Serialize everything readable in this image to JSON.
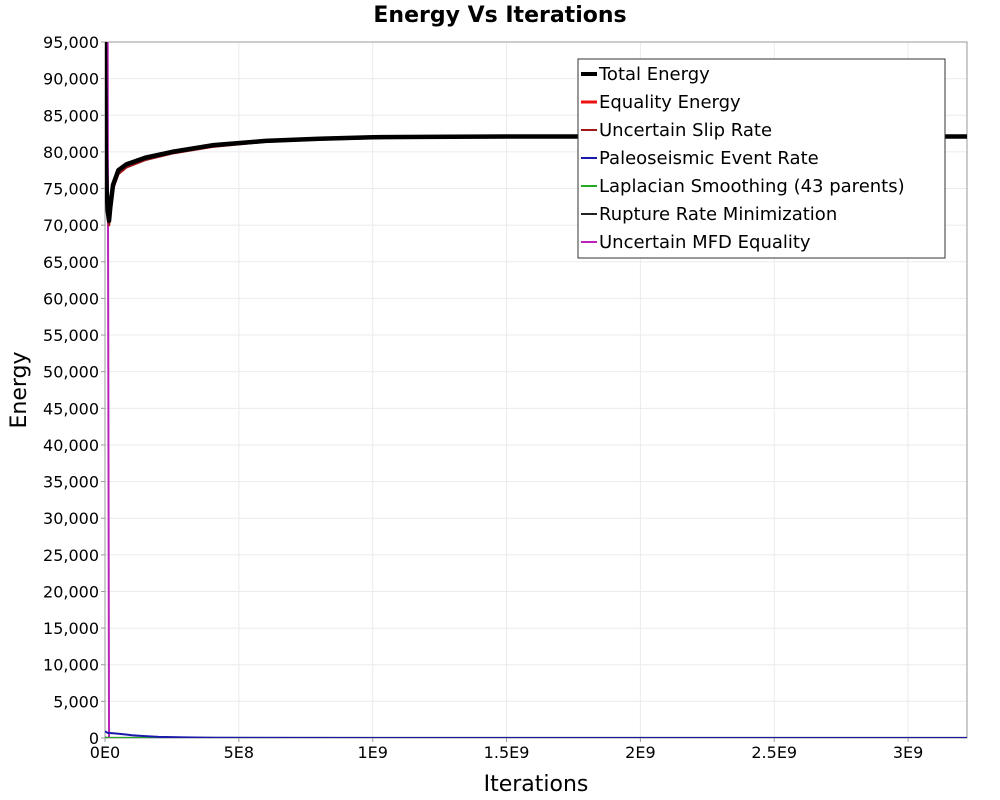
{
  "chart_data": {
    "type": "line",
    "title": "Energy Vs Iterations",
    "xlabel": "Iterations",
    "ylabel": "Energy",
    "xlim": [
      0,
      3220000000
    ],
    "ylim": [
      0,
      95000
    ],
    "x_ticks": [
      0,
      500000000,
      1000000000,
      1500000000,
      2000000000,
      2500000000,
      3000000000
    ],
    "x_tick_labels": [
      "0E0",
      "5E8",
      "1E9",
      "1.5E9",
      "2E9",
      "2.5E9",
      "3E9"
    ],
    "y_ticks": [
      0,
      5000,
      10000,
      15000,
      20000,
      25000,
      30000,
      35000,
      40000,
      45000,
      50000,
      55000,
      60000,
      65000,
      70000,
      75000,
      80000,
      85000,
      90000,
      95000
    ],
    "y_tick_labels": [
      "0",
      "5,000",
      "10,000",
      "15,000",
      "20,000",
      "25,000",
      "30,000",
      "35,000",
      "40,000",
      "45,000",
      "50,000",
      "55,000",
      "60,000",
      "65,000",
      "70,000",
      "75,000",
      "80,000",
      "85,000",
      "90,000",
      "95,000"
    ],
    "grid": true,
    "legend_position": "top-right",
    "series": [
      {
        "name": "Total Energy",
        "color": "#000000",
        "x": [
          0,
          3000000,
          6000000,
          10000000,
          15000000,
          20000000,
          30000000,
          50000000,
          80000000,
          150000000,
          250000000,
          400000000,
          600000000,
          800000000,
          1000000000,
          1200000000,
          1500000000,
          2000000000,
          2500000000,
          3000000000,
          3220000000
        ],
        "y": [
          95000,
          80000,
          75000,
          72000,
          70600,
          72500,
          75500,
          77500,
          78300,
          79200,
          80000,
          80900,
          81500,
          81800,
          82000,
          82050,
          82100,
          82100,
          82100,
          82100,
          82100
        ]
      },
      {
        "name": "Equality Energy",
        "color": "#ee1111",
        "x": [
          0,
          3000000,
          6000000,
          10000000,
          15000000,
          20000000,
          30000000,
          50000000,
          80000000,
          150000000,
          250000000,
          400000000,
          600000000,
          800000000,
          1000000000,
          1200000000,
          1500000000,
          2000000000,
          2500000000,
          3000000000,
          3220000000
        ],
        "y": [
          95000,
          80000,
          75000,
          72000,
          70600,
          72500,
          75500,
          77500,
          78300,
          79200,
          80000,
          80900,
          81500,
          81800,
          82000,
          82050,
          82100,
          82100,
          82100,
          82100,
          82100
        ]
      },
      {
        "name": "Uncertain Slip Rate",
        "color": "#a01818",
        "x": [
          0,
          3000000,
          6000000,
          10000000,
          15000000,
          20000000,
          30000000,
          50000000,
          80000000,
          150000000,
          250000000,
          400000000,
          600000000,
          800000000,
          1000000000,
          1200000000,
          1500000000,
          2000000000,
          2500000000,
          3000000000,
          3220000000
        ],
        "y": [
          95000,
          79500,
          74500,
          71500,
          70000,
          72000,
          75000,
          77000,
          77900,
          78900,
          79800,
          80700,
          81400,
          81700,
          81900,
          82000,
          82000,
          82000,
          82000,
          82000,
          82000
        ]
      },
      {
        "name": "Paleoseismic Event Rate",
        "color": "#1a1aaa",
        "x": [
          0,
          10000000,
          30000000,
          60000000,
          100000000,
          150000000,
          200000000,
          300000000,
          400000000,
          600000000,
          1000000000,
          3220000000
        ],
        "y": [
          900,
          700,
          650,
          550,
          380,
          250,
          160,
          80,
          40,
          15,
          5,
          0
        ]
      },
      {
        "name": "Laplacian Smoothing (43 parents)",
        "color": "#22aa22",
        "x": [
          0,
          10000000,
          3220000000
        ],
        "y": [
          0,
          0,
          0
        ]
      },
      {
        "name": "Rupture Rate Minimization",
        "color": "#222222",
        "x": [
          0,
          10000000,
          3220000000
        ],
        "y": [
          50,
          20,
          10
        ]
      },
      {
        "name": "Uncertain MFD Equality",
        "color": "#bb22bb",
        "x": [
          0,
          10000000,
          15000000,
          3220000000
        ],
        "y": [
          95000,
          95000,
          0,
          0
        ]
      }
    ]
  }
}
